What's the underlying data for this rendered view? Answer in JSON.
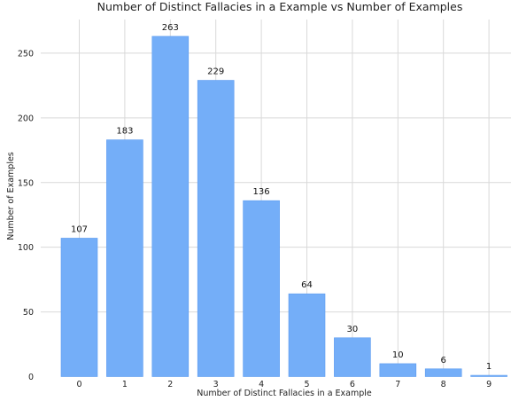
{
  "chart_data": {
    "type": "bar",
    "title": "Number of Distinct Fallacies in a Example vs Number of Examples",
    "xlabel": "Number of Distinct Fallacies in a Example",
    "ylabel": "Number of Examples",
    "categories": [
      "0",
      "1",
      "2",
      "3",
      "4",
      "5",
      "6",
      "7",
      "8",
      "9"
    ],
    "values": [
      107,
      183,
      263,
      229,
      136,
      64,
      30,
      10,
      6,
      1
    ],
    "data_labels": [
      "107",
      "183",
      "263",
      "229",
      "136",
      "64",
      "30",
      "10",
      "6",
      "1"
    ],
    "yticks": [
      0,
      50,
      100,
      150,
      200,
      250
    ],
    "ylim": [
      0,
      276
    ],
    "grid": true,
    "bar_color": "#74aef8",
    "bar_edge_color": "#5b9bf0"
  }
}
